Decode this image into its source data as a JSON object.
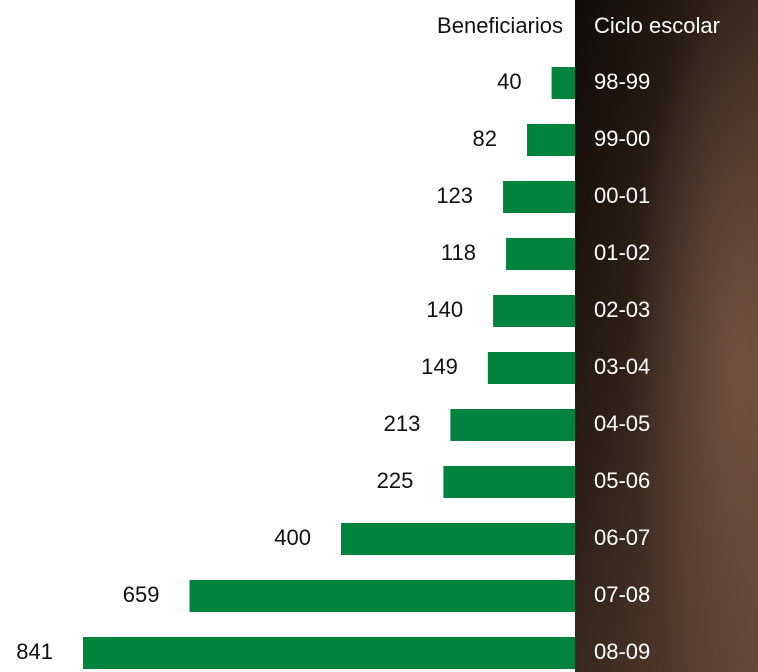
{
  "chart_data": {
    "type": "bar",
    "orientation": "horizontal",
    "value_header": "Beneficiarios",
    "category_header": "Ciclo escolar",
    "categories": [
      "98-99",
      "99-00",
      "00-01",
      "01-02",
      "02-03",
      "03-04",
      "04-05",
      "05-06",
      "06-07",
      "07-08",
      "08-09"
    ],
    "values": [
      40,
      82,
      123,
      118,
      140,
      149,
      213,
      225,
      400,
      659,
      841
    ],
    "color": "#00843d"
  }
}
